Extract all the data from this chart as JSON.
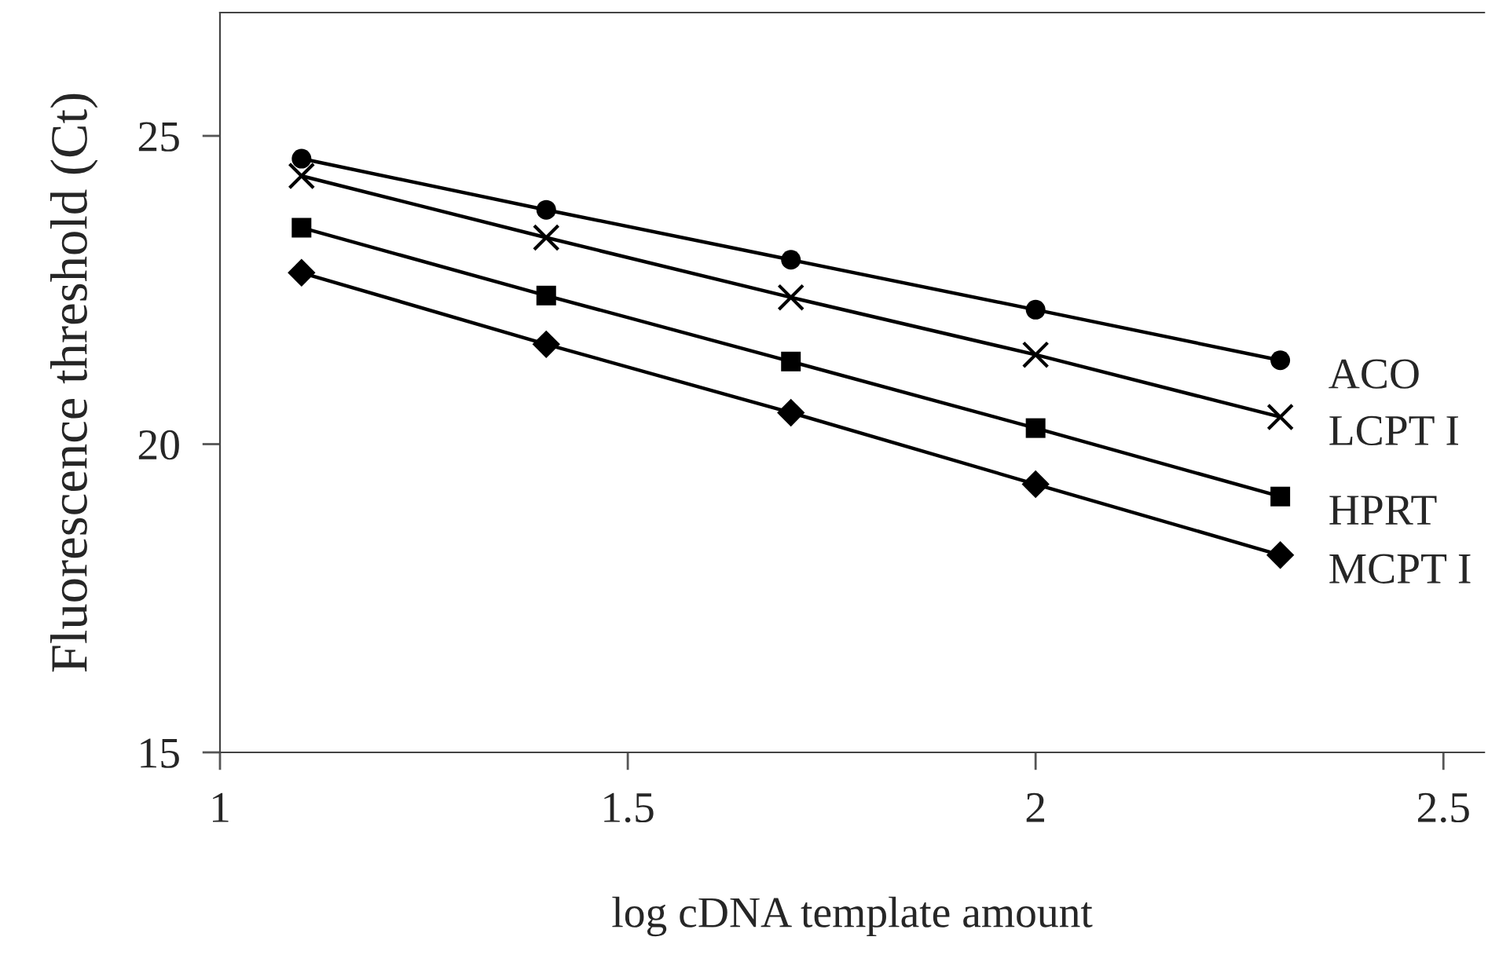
{
  "chart_data": {
    "type": "line",
    "xlabel": "log cDNA template amount",
    "ylabel": "Fluorescence threshold (Ct)",
    "x": [
      1.1,
      1.4,
      1.7,
      2.0,
      2.3
    ],
    "series": [
      {
        "name": "ACO",
        "color": "#000000",
        "marker": "circle",
        "values": [
          24.63,
          23.8,
          22.99,
          22.18,
          21.36
        ]
      },
      {
        "name": "LCPT I",
        "color": "#000000",
        "marker": "cross",
        "values": [
          24.35,
          23.35,
          22.38,
          21.45,
          20.44
        ]
      },
      {
        "name": "HPRT",
        "color": "#000000",
        "marker": "square",
        "values": [
          23.51,
          22.41,
          21.34,
          20.26,
          19.15
        ]
      },
      {
        "name": "MCPT I",
        "color": "#000000",
        "marker": "diamond",
        "values": [
          22.78,
          21.62,
          20.51,
          19.35,
          18.2
        ]
      }
    ],
    "xlim": [
      1,
      2.55
    ],
    "xticks": [
      1,
      1.5,
      2,
      2.5
    ],
    "ylim": [
      15,
      27
    ],
    "yticks": [
      15,
      20,
      25
    ],
    "grid": false,
    "legend": false,
    "line_style": "solid"
  }
}
